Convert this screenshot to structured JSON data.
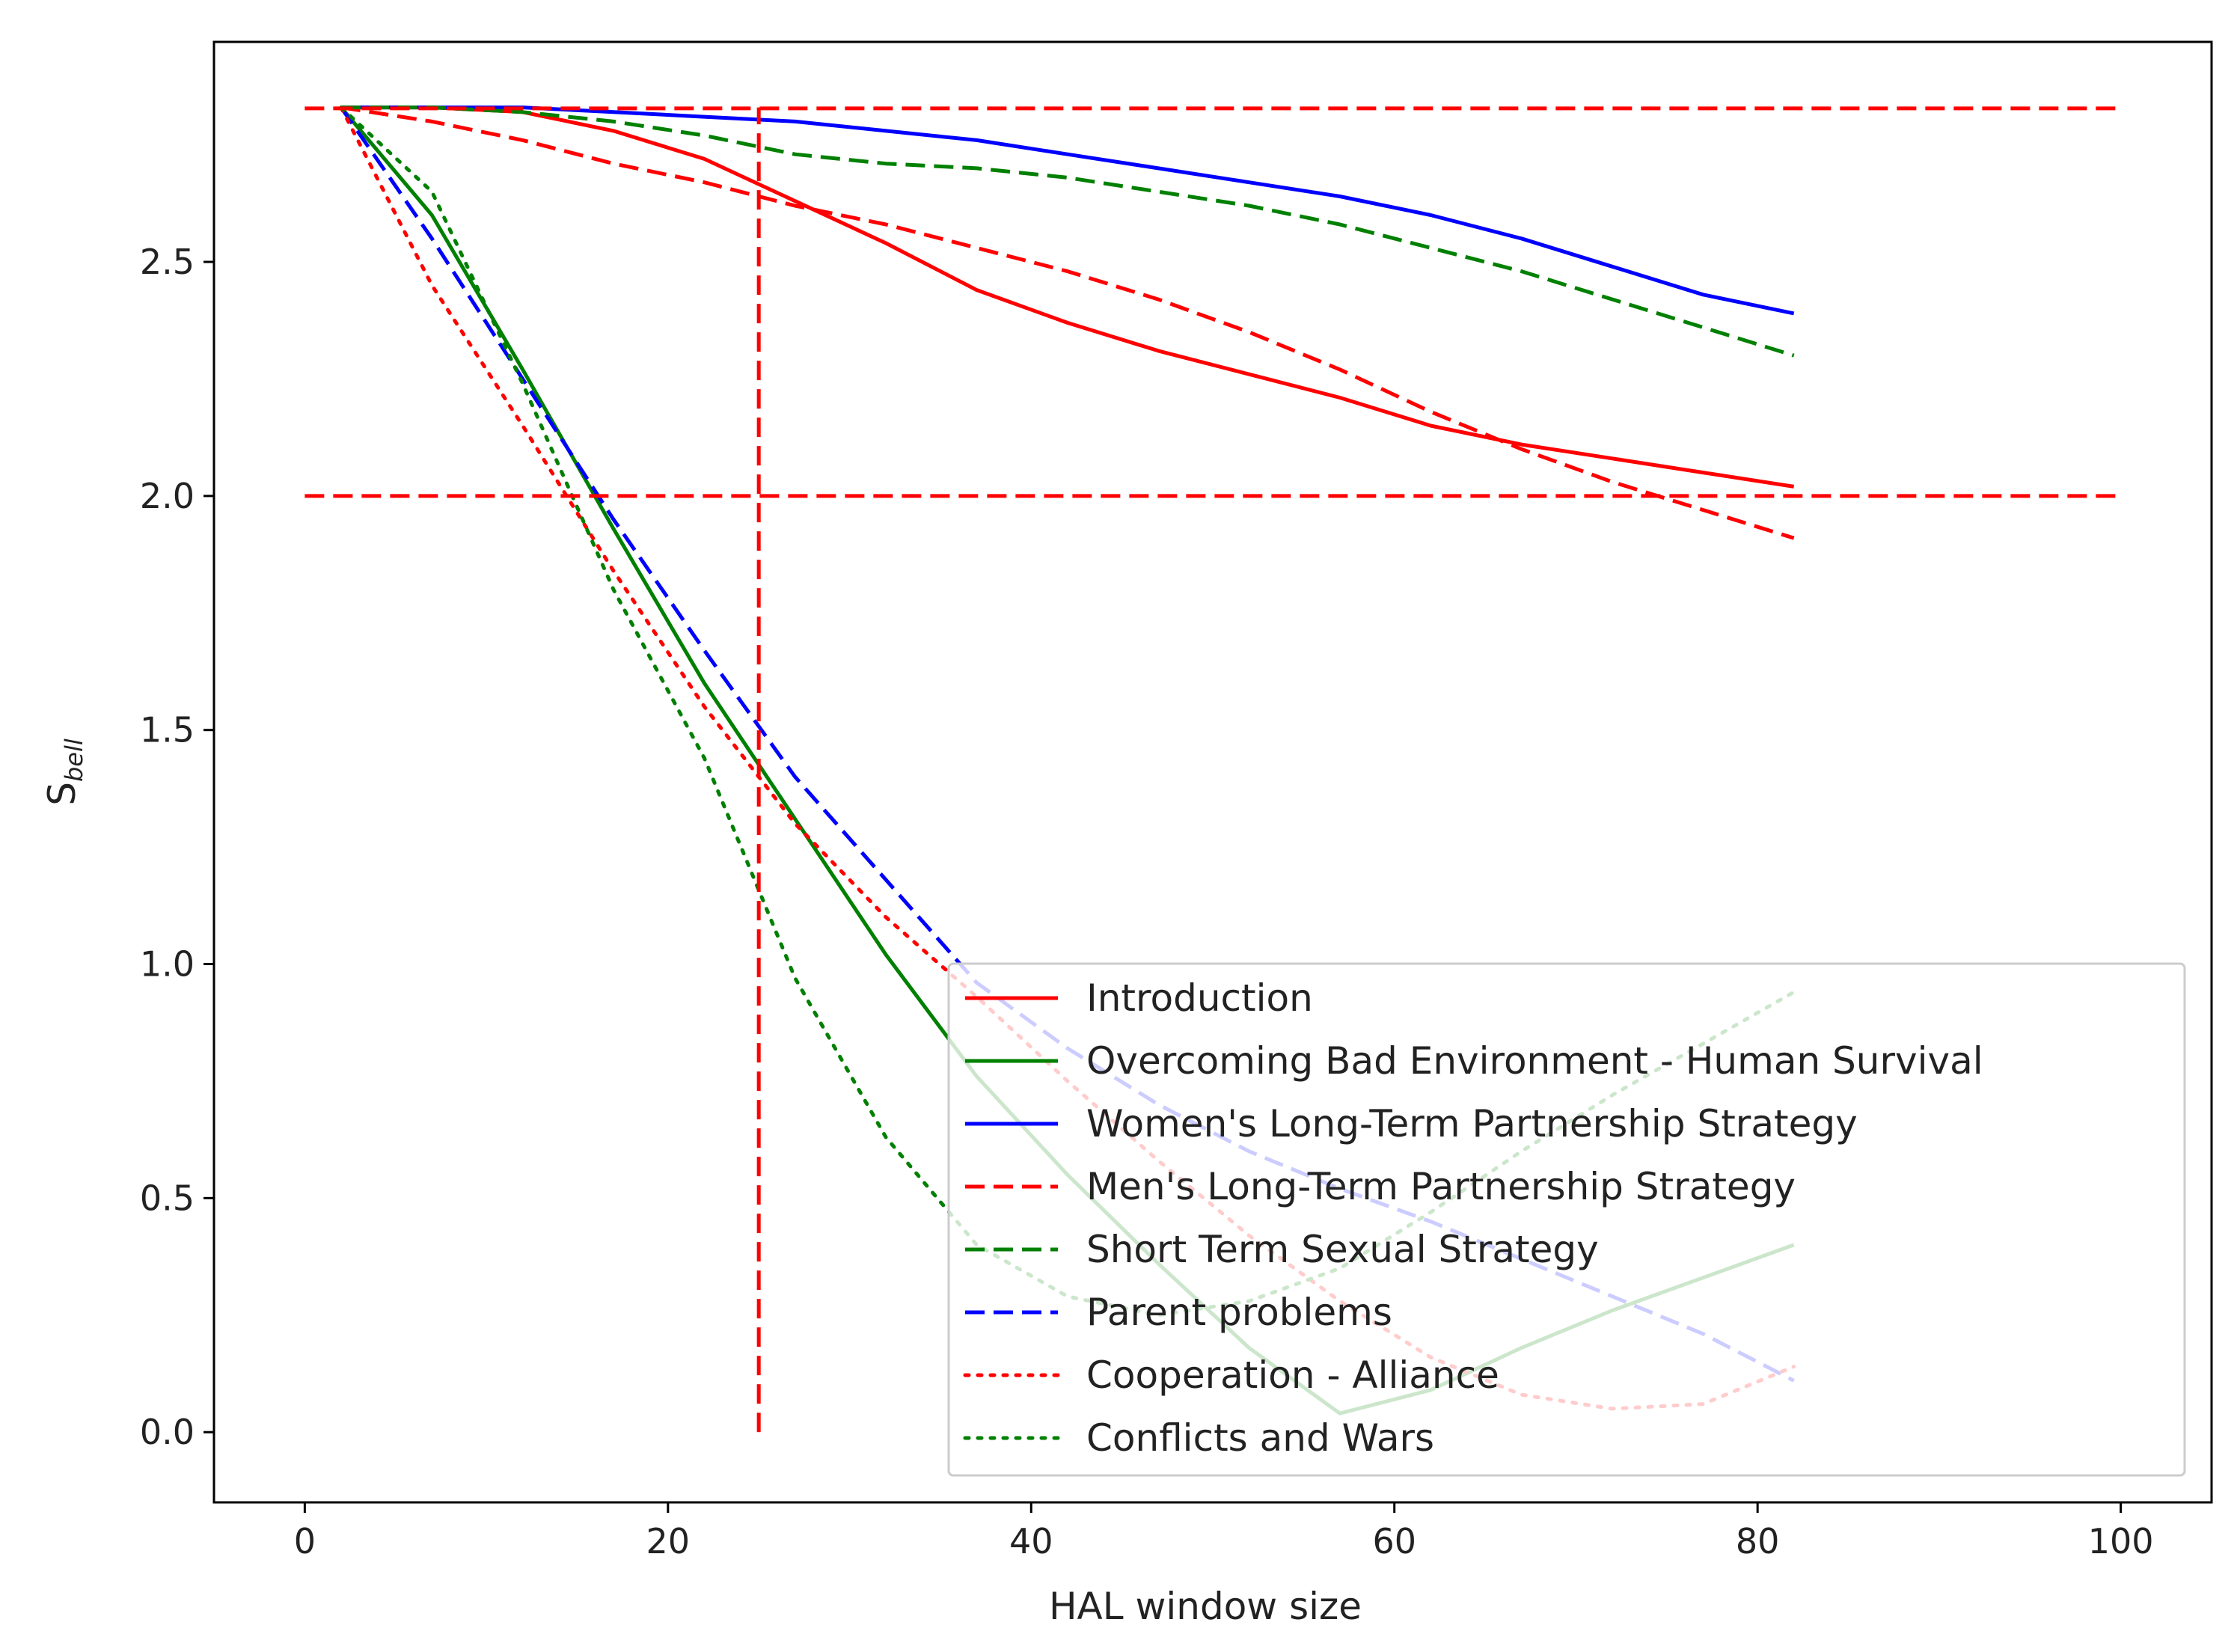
{
  "chart_data": {
    "type": "line",
    "title": "",
    "xlabel": "HAL window size",
    "ylabel": {
      "base": "S",
      "subscript": "bell"
    },
    "xlim": [
      -5,
      105
    ],
    "ylim": [
      -0.15,
      2.97
    ],
    "xticks": [
      0,
      20,
      40,
      60,
      80,
      100
    ],
    "xtick_labels": [
      "0",
      "20",
      "40",
      "60",
      "80",
      "100"
    ],
    "yticks": [
      0.0,
      0.5,
      1.0,
      1.5,
      2.0,
      2.5
    ],
    "ytick_labels": [
      "0.0",
      "0.5",
      "1.0",
      "1.5",
      "2.0",
      "2.5"
    ],
    "grid": false,
    "legend_position": "lower-right",
    "reference_lines": [
      {
        "orientation": "horizontal",
        "y": 2.828,
        "x_from": 0,
        "x_to": 100,
        "color": "#ff0000",
        "style": "dashed"
      },
      {
        "orientation": "horizontal",
        "y": 2.0,
        "x_from": 0,
        "x_to": 100,
        "color": "#ff0000",
        "style": "dashed"
      },
      {
        "orientation": "vertical",
        "x": 25,
        "y_from": 0.0,
        "y_to": 2.83,
        "color": "#ff0000",
        "style": "dashed"
      }
    ],
    "series": [
      {
        "name": "Introduction",
        "color": "#ff0000",
        "style": "solid",
        "x": [
          2,
          7,
          12,
          17,
          22,
          27,
          32,
          37,
          42,
          47,
          52,
          57,
          62,
          67,
          72,
          77,
          82
        ],
        "y": [
          2.83,
          2.83,
          2.82,
          2.78,
          2.72,
          2.63,
          2.54,
          2.44,
          2.37,
          2.31,
          2.26,
          2.21,
          2.15,
          2.11,
          2.08,
          2.05,
          2.02
        ]
      },
      {
        "name": "Overcoming Bad Environment - Human Survival",
        "color": "#008000",
        "style": "solid",
        "x": [
          2,
          7,
          12,
          17,
          22,
          27,
          32,
          37,
          42,
          47,
          52,
          57,
          62,
          67,
          72,
          77,
          82
        ],
        "y": [
          2.83,
          2.6,
          2.27,
          1.93,
          1.6,
          1.31,
          1.02,
          0.76,
          0.55,
          0.36,
          0.18,
          0.04,
          0.09,
          0.18,
          0.26,
          0.33,
          0.4
        ]
      },
      {
        "name": "Women's Long-Term Partnership Strategy",
        "color": "#0000ff",
        "style": "solid",
        "x": [
          2,
          7,
          12,
          17,
          22,
          27,
          32,
          37,
          42,
          47,
          52,
          57,
          62,
          67,
          72,
          77,
          82
        ],
        "y": [
          2.83,
          2.83,
          2.83,
          2.82,
          2.81,
          2.8,
          2.78,
          2.76,
          2.73,
          2.7,
          2.67,
          2.64,
          2.6,
          2.55,
          2.49,
          2.43,
          2.39
        ]
      },
      {
        "name": "Men's Long-Term Partnership Strategy",
        "color": "#ff0000",
        "style": "dashed",
        "x": [
          2,
          7,
          12,
          17,
          22,
          27,
          32,
          37,
          42,
          47,
          52,
          57,
          62,
          67,
          72,
          77,
          82
        ],
        "y": [
          2.83,
          2.8,
          2.76,
          2.71,
          2.67,
          2.62,
          2.58,
          2.53,
          2.48,
          2.42,
          2.35,
          2.27,
          2.18,
          2.1,
          2.03,
          1.97,
          1.91
        ]
      },
      {
        "name": "Short Term Sexual Strategy",
        "color": "#008000",
        "style": "dashed",
        "x": [
          2,
          7,
          12,
          17,
          22,
          27,
          32,
          37,
          42,
          47,
          52,
          57,
          62,
          67,
          72,
          77,
          82
        ],
        "y": [
          2.83,
          2.83,
          2.82,
          2.8,
          2.77,
          2.73,
          2.71,
          2.7,
          2.68,
          2.65,
          2.62,
          2.58,
          2.53,
          2.48,
          2.42,
          2.36,
          2.3
        ]
      },
      {
        "name": "Parent problems",
        "color": "#0000ff",
        "style": "dashed",
        "x": [
          2,
          7,
          12,
          17,
          22,
          27,
          32,
          37,
          42,
          47,
          52,
          57,
          62,
          67,
          72,
          77,
          82
        ],
        "y": [
          2.83,
          2.55,
          2.25,
          1.95,
          1.67,
          1.4,
          1.18,
          0.96,
          0.82,
          0.7,
          0.6,
          0.52,
          0.45,
          0.37,
          0.29,
          0.21,
          0.11
        ]
      },
      {
        "name": "Cooperation - Alliance",
        "color": "#ff0000",
        "style": "dotted",
        "x": [
          2,
          7,
          12,
          17,
          22,
          27,
          32,
          37,
          42,
          47,
          52,
          57,
          62,
          67,
          72,
          77,
          82
        ],
        "y": [
          2.83,
          2.45,
          2.15,
          1.84,
          1.55,
          1.3,
          1.1,
          0.93,
          0.75,
          0.58,
          0.42,
          0.28,
          0.16,
          0.08,
          0.05,
          0.06,
          0.14
        ]
      },
      {
        "name": "Conflicts and Wars",
        "color": "#008000",
        "style": "dotted",
        "x": [
          2,
          7,
          12,
          17,
          22,
          27,
          32,
          37,
          42,
          47,
          52,
          57,
          62,
          67,
          72,
          77,
          82
        ],
        "y": [
          2.83,
          2.65,
          2.24,
          1.8,
          1.44,
          0.97,
          0.63,
          0.4,
          0.29,
          0.25,
          0.28,
          0.35,
          0.47,
          0.6,
          0.72,
          0.83,
          0.94
        ]
      }
    ]
  }
}
